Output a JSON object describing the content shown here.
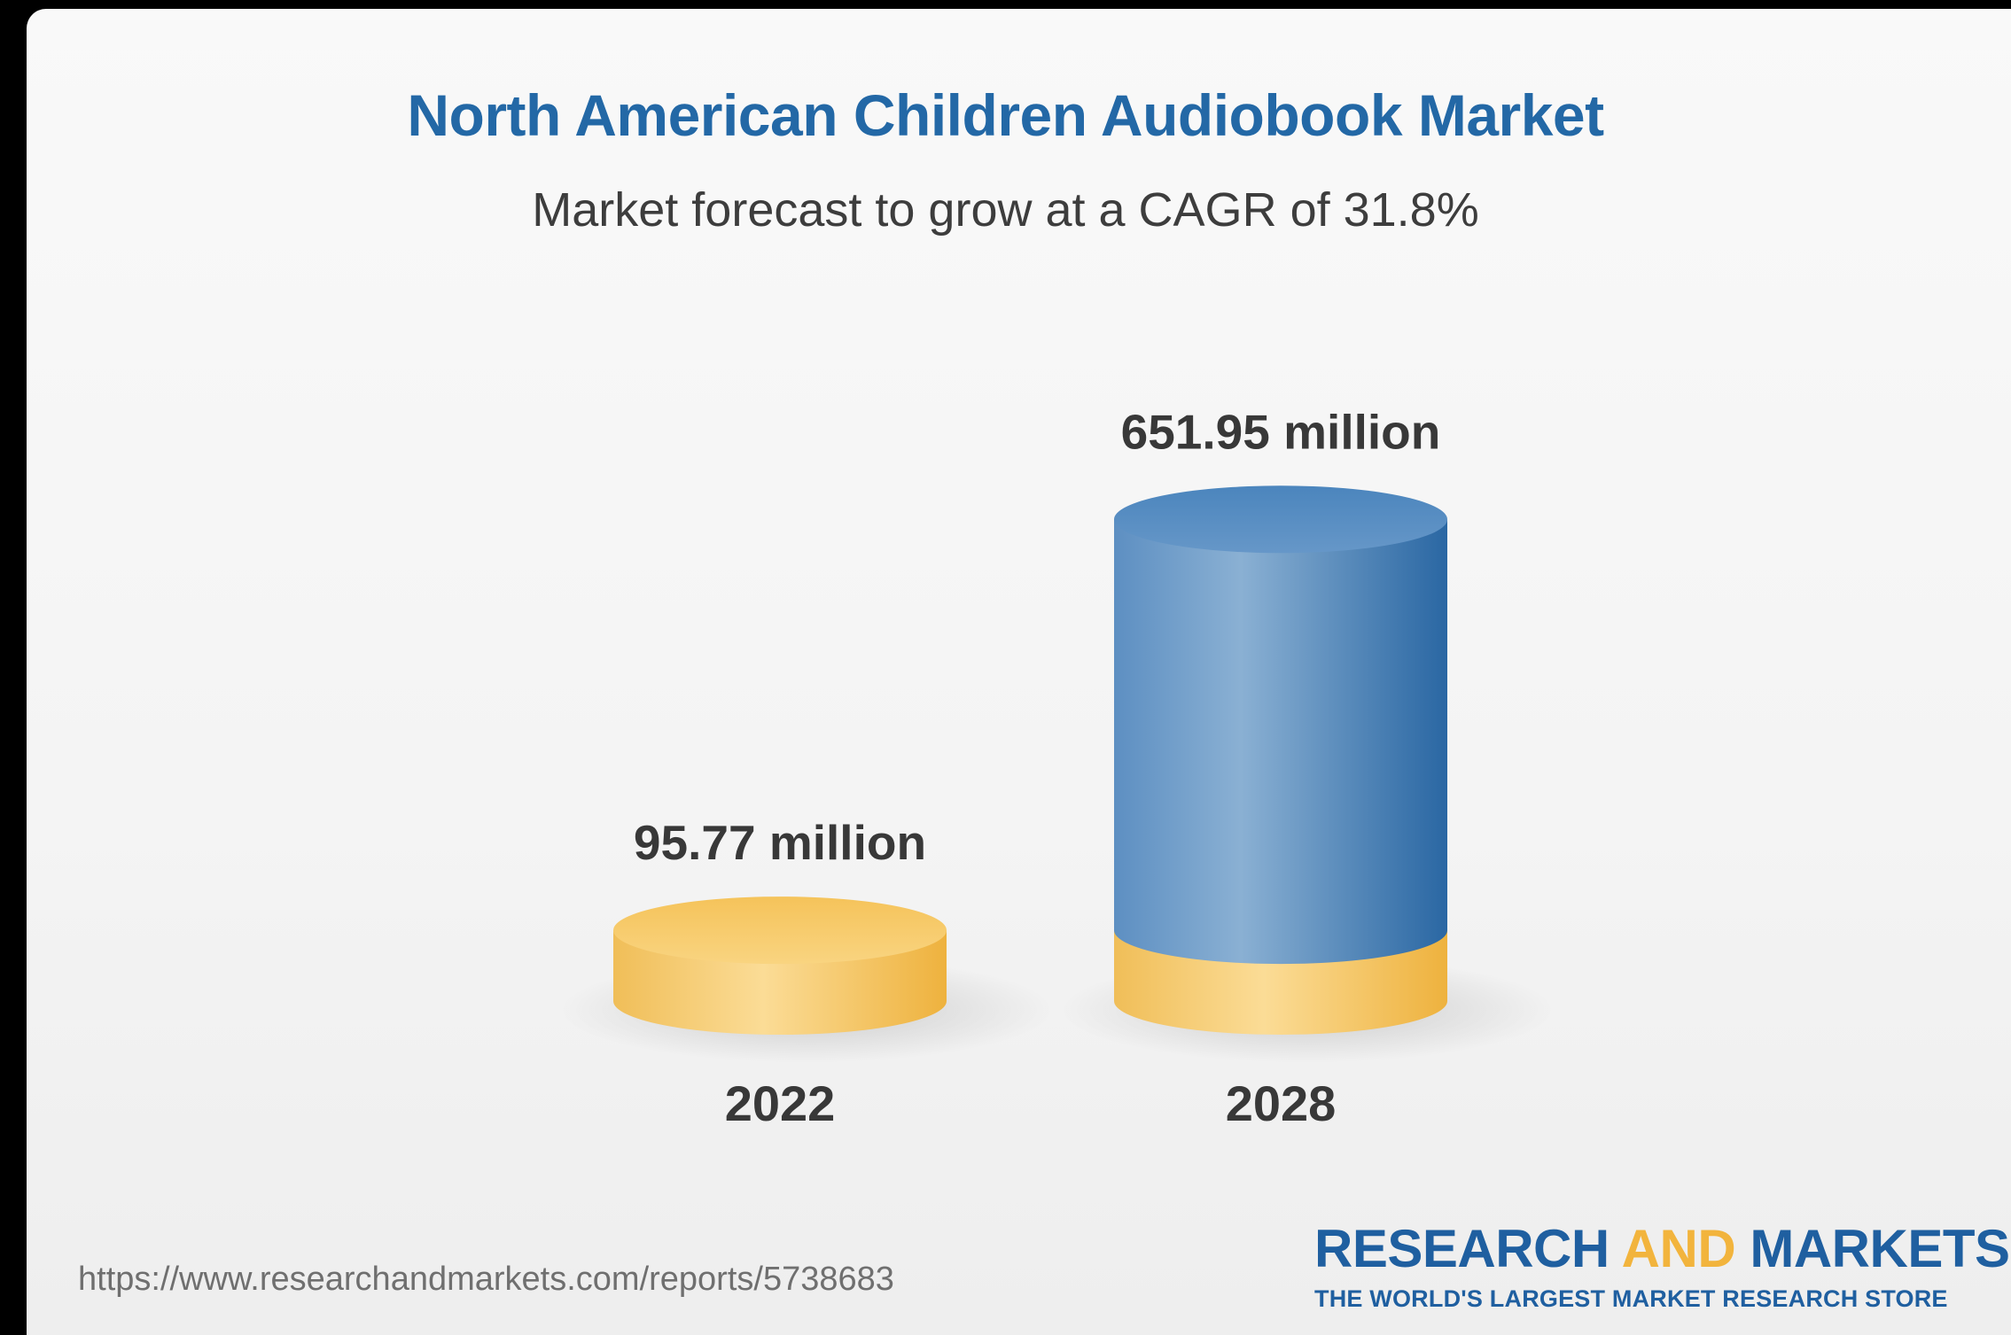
{
  "colors": {
    "title": "#2368a6",
    "subtitle": "#3d3d3d",
    "bar_base": "#f2c566",
    "bar_growth": "#3b78b3",
    "label": "#383838",
    "logo_blue": "#1f5fa0",
    "logo_accent": "#f2b43d",
    "url": "#6f6f6f"
  },
  "chart_data": {
    "type": "bar",
    "style": "3d-cylinder",
    "title": "North American Children Audiobook Market",
    "subtitle": "Market forecast to grow at a CAGR of 31.8%",
    "categories": [
      "2022",
      "2028"
    ],
    "values": [
      95.77,
      651.95
    ],
    "data_labels": [
      "95.77 million",
      "651.95 million"
    ],
    "segments": {
      "base_value": 95.77,
      "base_color": "#f2c566",
      "growth_color": "#3b78b3"
    },
    "xlabel": "",
    "ylabel": "",
    "grid": false,
    "legend": "none"
  },
  "footer": {
    "source_url": "https://www.researchandmarkets.com/reports/5738683"
  },
  "logo": {
    "word1": "RESEARCH",
    "word2": "AND",
    "word3": "MARKETS",
    "tagline": "THE WORLD'S LARGEST MARKET RESEARCH STORE"
  }
}
